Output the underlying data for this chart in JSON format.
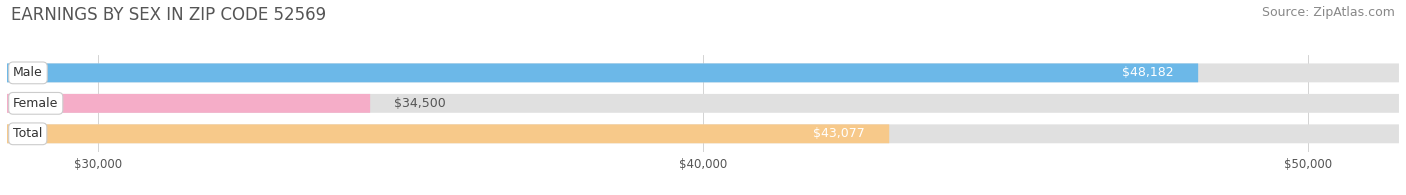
{
  "title": "EARNINGS BY SEX IN ZIP CODE 52569",
  "source": "Source: ZipAtlas.com",
  "categories": [
    "Male",
    "Female",
    "Total"
  ],
  "values": [
    48182,
    34500,
    43077
  ],
  "bar_colors": [
    "#6cb8e8",
    "#f5adc8",
    "#f7c98a"
  ],
  "label_texts": [
    "$48,182",
    "$34,500",
    "$43,077"
  ],
  "label_inside": [
    true,
    false,
    true
  ],
  "bar_bg_color": "#e0e0e0",
  "xlim_min": 28500,
  "xlim_max": 51500,
  "xticks": [
    30000,
    40000,
    50000
  ],
  "xtick_labels": [
    "$30,000",
    "$40,000",
    "$50,000"
  ],
  "title_fontsize": 12,
  "source_fontsize": 9,
  "bar_label_fontsize": 9,
  "cat_label_fontsize": 9,
  "figsize": [
    14.06,
    1.95
  ],
  "dpi": 100
}
